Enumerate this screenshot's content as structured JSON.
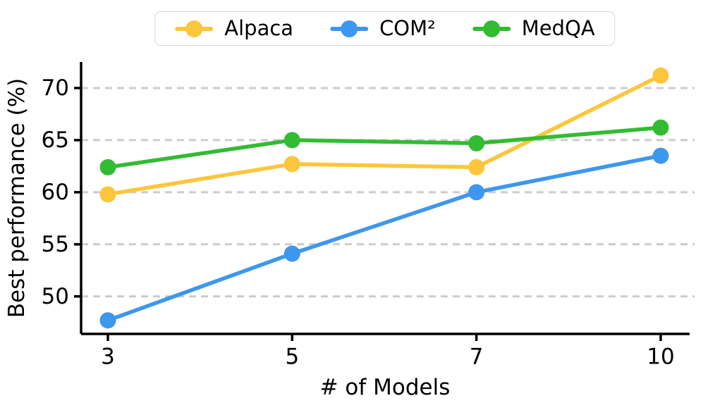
{
  "figure": {
    "background": "#ffffff",
    "text_color": "#000000",
    "spine_color": "#000000"
  },
  "chart_data": {
    "type": "line",
    "title": "",
    "xlabel": "# of Models",
    "ylabel": "Best performance (%)",
    "categories": [
      "3",
      "5",
      "7",
      "10"
    ],
    "x_values": [
      3,
      5,
      7,
      10
    ],
    "series": [
      {
        "name": "Alpaca",
        "color": "#FCC63C",
        "values": [
          59.8,
          62.7,
          62.4,
          71.2
        ]
      },
      {
        "name": "COM²",
        "color": "#3D97EE",
        "values": [
          47.7,
          54.1,
          60.0,
          63.5
        ]
      },
      {
        "name": "MedQA",
        "color": "#33BB33",
        "values": [
          62.4,
          65.0,
          64.7,
          66.2
        ]
      }
    ],
    "yticks": [
      50,
      55,
      60,
      65,
      70
    ],
    "ylim": [
      46.4,
      72.5
    ],
    "grid": {
      "axis": "y",
      "style": "dashed",
      "color": "#cccccc"
    },
    "legend": {
      "position": "top-center",
      "border_color": "#d8d8d8",
      "background": "#ffffff"
    }
  }
}
